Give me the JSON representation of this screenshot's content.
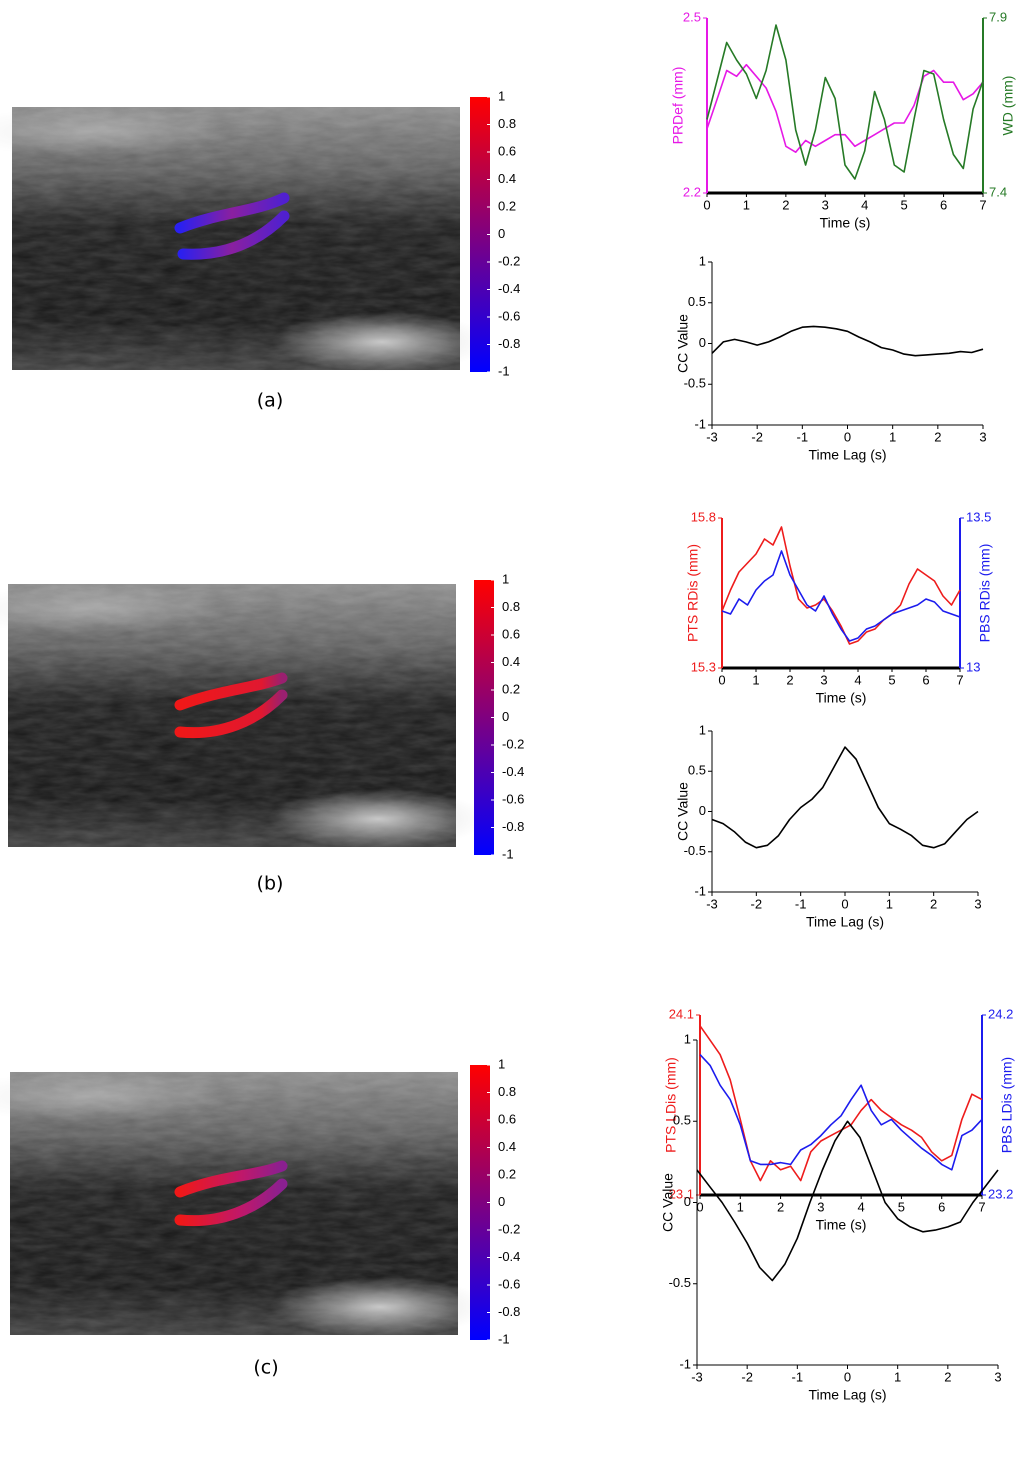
{
  "captions": [
    "(a)",
    "(b)",
    "(c)"
  ],
  "chart_data": [
    {
      "type": "colorbar",
      "colors": [
        "#0000ff",
        "#ff0000"
      ],
      "ylim": [
        -1,
        1
      ],
      "yticks": [
        1,
        0.8,
        0.6,
        0.4,
        0.2,
        0,
        -0.2,
        -0.4,
        -0.6,
        -0.8,
        -1
      ]
    },
    {
      "type": "line",
      "xlabel": "Time (s)",
      "ylabel": "PRDef (mm)",
      "y2label": "WD (mm)",
      "x": [
        0,
        0.25,
        0.5,
        0.75,
        1,
        1.25,
        1.5,
        1.75,
        2,
        2.25,
        2.5,
        2.75,
        3,
        3.25,
        3.5,
        3.75,
        4,
        4.25,
        4.5,
        4.75,
        5,
        5.25,
        5.5,
        5.75,
        6,
        6.25,
        6.5,
        6.75,
        7
      ],
      "xlim": [
        0,
        7
      ],
      "xticks": [
        0,
        1,
        2,
        3,
        4,
        5,
        6,
        7
      ],
      "ylim": [
        2.2,
        2.5
      ],
      "yticks": [
        2.2,
        2.5
      ],
      "y2lim": [
        7.4,
        7.9
      ],
      "y2ticks": [
        7.4,
        7.9
      ],
      "series": [
        {
          "name": "PRDef (mm)",
          "color": "#e619e6",
          "values": [
            2.31,
            2.36,
            2.41,
            2.4,
            2.42,
            2.4,
            2.38,
            2.34,
            2.28,
            2.27,
            2.29,
            2.28,
            2.29,
            2.3,
            2.3,
            2.28,
            2.29,
            2.3,
            2.31,
            2.32,
            2.32,
            2.35,
            2.4,
            2.41,
            2.39,
            2.39,
            2.36,
            2.37,
            2.39
          ]
        },
        {
          "name": "WD (mm)",
          "color": "#267a26",
          "axis": "y2",
          "values": [
            7.61,
            7.72,
            7.83,
            7.78,
            7.74,
            7.67,
            7.75,
            7.88,
            7.78,
            7.58,
            7.48,
            7.58,
            7.73,
            7.67,
            7.48,
            7.44,
            7.52,
            7.69,
            7.61,
            7.48,
            7.46,
            7.61,
            7.75,
            7.74,
            7.61,
            7.51,
            7.47,
            7.64,
            7.72
          ]
        }
      ]
    },
    {
      "type": "line",
      "xlabel": "Time Lag (s)",
      "ylabel": "CC Value",
      "x": [
        -3,
        -2.75,
        -2.5,
        -2.25,
        -2,
        -1.75,
        -1.5,
        -1.25,
        -1,
        -0.75,
        -0.5,
        -0.25,
        0,
        0.25,
        0.5,
        0.75,
        1,
        1.25,
        1.5,
        1.75,
        2,
        2.25,
        2.5,
        2.75,
        3
      ],
      "xlim": [
        -3,
        3
      ],
      "xticks": [
        -3,
        -2,
        -1,
        0,
        1,
        2,
        3
      ],
      "ylim": [
        -1,
        1
      ],
      "yticks": [
        -1,
        -0.5,
        0,
        0.5,
        1
      ],
      "series": [
        {
          "name": "CC Value",
          "color": "#000000",
          "values": [
            -0.12,
            0.02,
            0.05,
            0.02,
            -0.02,
            0.02,
            0.08,
            0.15,
            0.2,
            0.21,
            0.2,
            0.18,
            0.15,
            0.08,
            0.02,
            -0.05,
            -0.08,
            -0.13,
            -0.15,
            -0.14,
            -0.13,
            -0.12,
            -0.1,
            -0.11,
            -0.07
          ]
        }
      ]
    },
    {
      "type": "colorbar",
      "colors": [
        "#0000ff",
        "#ff0000"
      ],
      "ylim": [
        -1,
        1
      ],
      "yticks": [
        1,
        0.8,
        0.6,
        0.4,
        0.2,
        0,
        -0.2,
        -0.4,
        -0.6,
        -0.8,
        -1
      ]
    },
    {
      "type": "line",
      "xlabel": "Time (s)",
      "ylabel": "PTS RDis (mm)",
      "y2label": "PBS RDis (mm)",
      "x": [
        0,
        0.25,
        0.5,
        0.75,
        1,
        1.25,
        1.5,
        1.75,
        2,
        2.25,
        2.5,
        2.75,
        3,
        3.25,
        3.5,
        3.75,
        4,
        4.25,
        4.5,
        4.75,
        5,
        5.25,
        5.5,
        5.75,
        6,
        6.25,
        6.5,
        6.75,
        7
      ],
      "xlim": [
        0,
        7
      ],
      "xticks": [
        0,
        1,
        2,
        3,
        4,
        5,
        6,
        7
      ],
      "ylim": [
        15.3,
        15.8
      ],
      "yticks": [
        15.3,
        15.8
      ],
      "y2lim": [
        13,
        13.5
      ],
      "y2ticks": [
        13,
        13.5
      ],
      "series": [
        {
          "name": "PTS RDis (mm)",
          "color": "#ee1c1c",
          "values": [
            15.49,
            15.56,
            15.62,
            15.65,
            15.68,
            15.73,
            15.71,
            15.77,
            15.64,
            15.53,
            15.5,
            15.51,
            15.53,
            15.49,
            15.44,
            15.38,
            15.39,
            15.42,
            15.43,
            15.46,
            15.48,
            15.51,
            15.58,
            15.63,
            15.61,
            15.59,
            15.54,
            15.51,
            15.56
          ]
        },
        {
          "name": "PBS RDis (mm)",
          "color": "#1c1cee",
          "axis": "y2",
          "values": [
            13.19,
            13.18,
            13.23,
            13.21,
            13.26,
            13.29,
            13.31,
            13.39,
            13.31,
            13.26,
            13.21,
            13.19,
            13.24,
            13.18,
            13.13,
            13.09,
            13.1,
            13.13,
            13.14,
            13.16,
            13.18,
            13.19,
            13.2,
            13.21,
            13.23,
            13.22,
            13.19,
            13.18,
            13.17
          ]
        }
      ]
    },
    {
      "type": "line",
      "xlabel": "Time Lag (s)",
      "ylabel": "CC Value",
      "x": [
        -3,
        -2.75,
        -2.5,
        -2.25,
        -2,
        -1.75,
        -1.5,
        -1.25,
        -1,
        -0.75,
        -0.5,
        -0.25,
        0,
        0.25,
        0.5,
        0.75,
        1,
        1.25,
        1.5,
        1.75,
        2,
        2.25,
        2.5,
        2.75,
        3
      ],
      "xlim": [
        -3,
        3
      ],
      "xticks": [
        -3,
        -2,
        -1,
        0,
        1,
        2,
        3
      ],
      "ylim": [
        -1,
        1
      ],
      "yticks": [
        -1,
        -0.5,
        0,
        0.5,
        1
      ],
      "series": [
        {
          "name": "CC Value",
          "color": "#000000",
          "values": [
            -0.1,
            -0.15,
            -0.25,
            -0.38,
            -0.45,
            -0.42,
            -0.3,
            -0.1,
            0.05,
            0.15,
            0.3,
            0.55,
            0.8,
            0.65,
            0.35,
            0.05,
            -0.15,
            -0.22,
            -0.3,
            -0.42,
            -0.45,
            -0.4,
            -0.25,
            -0.1,
            0
          ]
        }
      ]
    },
    {
      "type": "colorbar",
      "colors": [
        "#0000ff",
        "#ff0000"
      ],
      "ylim": [
        -1,
        1
      ],
      "yticks": [
        1,
        0.8,
        0.6,
        0.4,
        0.2,
        0,
        -0.2,
        -0.4,
        -0.6,
        -0.8,
        -1
      ]
    },
    {
      "type": "line",
      "xlabel": "Time (s)",
      "ylabel": "PTS LDis (mm)",
      "y2label": "PBS LDis (mm)",
      "x": [
        0,
        0.25,
        0.5,
        0.75,
        1,
        1.25,
        1.5,
        1.75,
        2,
        2.25,
        2.5,
        2.75,
        3,
        3.25,
        3.5,
        3.75,
        4,
        4.25,
        4.5,
        4.75,
        5,
        5.25,
        5.5,
        5.75,
        6,
        6.25,
        6.5,
        6.75,
        7
      ],
      "xlim": [
        0,
        7
      ],
      "xticks": [
        0,
        1,
        2,
        3,
        4,
        5,
        6,
        7
      ],
      "ylim": [
        23.1,
        24.1
      ],
      "yticks": [
        23.1,
        24.1
      ],
      "y2lim": [
        23.2,
        24.2
      ],
      "y2ticks": [
        23.2,
        24.2
      ],
      "series": [
        {
          "name": "PTS LDis (mm)",
          "color": "#ee1c1c",
          "values": [
            24.04,
            23.96,
            23.88,
            23.74,
            23.52,
            23.29,
            23.18,
            23.29,
            23.24,
            23.26,
            23.18,
            23.34,
            23.4,
            23.43,
            23.46,
            23.49,
            23.57,
            23.63,
            23.57,
            23.53,
            23.49,
            23.46,
            23.42,
            23.34,
            23.29,
            23.32,
            23.52,
            23.66,
            23.63
          ]
        },
        {
          "name": "PBS LDis (mm)",
          "color": "#1c1cee",
          "axis": "y2",
          "values": [
            23.98,
            23.92,
            23.81,
            23.73,
            23.59,
            23.39,
            23.37,
            23.37,
            23.38,
            23.37,
            23.45,
            23.48,
            23.53,
            23.59,
            23.64,
            23.73,
            23.81,
            23.67,
            23.59,
            23.62,
            23.56,
            23.51,
            23.46,
            23.42,
            23.37,
            23.34,
            23.53,
            23.56,
            23.62
          ]
        }
      ]
    },
    {
      "type": "line",
      "xlabel": "Time Lag (s)",
      "ylabel": "CC Value",
      "x": [
        -3,
        -2.75,
        -2.5,
        -2.25,
        -2,
        -1.75,
        -1.5,
        -1.25,
        -1,
        -0.75,
        -0.5,
        -0.25,
        0,
        0.25,
        0.5,
        0.75,
        1,
        1.25,
        1.5,
        1.75,
        2,
        2.25,
        2.5,
        2.75,
        3
      ],
      "xlim": [
        -3,
        3
      ],
      "xticks": [
        -3,
        -2,
        -1,
        0,
        1,
        2,
        3
      ],
      "ylim": [
        -1,
        1
      ],
      "yticks": [
        -1,
        -0.5,
        0,
        0.5,
        1
      ],
      "series": [
        {
          "name": "CC Value",
          "color": "#000000",
          "values": [
            0.2,
            0.1,
            0,
            -0.12,
            -0.25,
            -0.4,
            -0.48,
            -0.38,
            -0.22,
            0,
            0.2,
            0.38,
            0.5,
            0.4,
            0.2,
            0,
            -0.1,
            -0.15,
            -0.18,
            -0.17,
            -0.15,
            -0.12,
            0,
            0.1,
            0.2
          ]
        }
      ]
    }
  ]
}
